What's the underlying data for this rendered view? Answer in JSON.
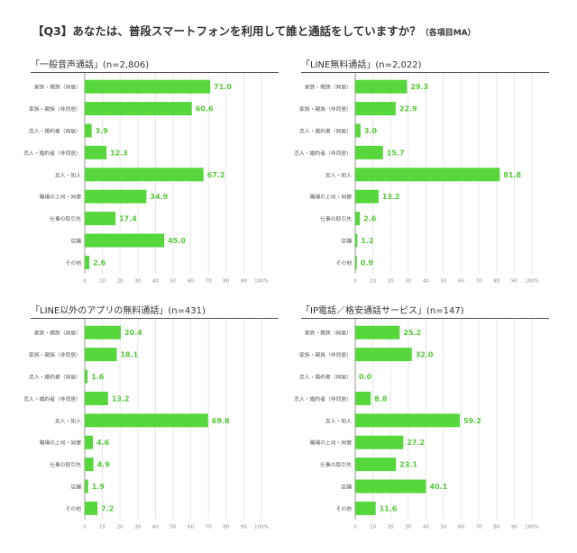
{
  "title": {
    "main": "【Q3】あなたは、普段スマートフォンを利用して誰と通話をしていますか？",
    "note": "（各項目MA）"
  },
  "colors": {
    "bar": "#56d73c",
    "value_text": "#56c93a",
    "grid": "#e6e6e6",
    "axis": "#999999"
  },
  "chart_data": [
    {
      "type": "bar",
      "orientation": "horizontal",
      "title": "「一般音声通話」",
      "n_label": "(n=2,806)",
      "categories": [
        "家族・親族（同居）",
        "家族・親族（非同居）",
        "恋人・婚約者（同居）",
        "恋人・婚約者（非同居）",
        "友人・知人",
        "職場の上司・同僚",
        "仕事の取引先",
        "店舗",
        "その他"
      ],
      "values": [
        71.0,
        60.6,
        3.9,
        12.3,
        67.2,
        34.9,
        17.4,
        45.0,
        2.6
      ],
      "xlim": [
        0,
        100
      ],
      "xticks": [
        "0",
        "10",
        "20",
        "30",
        "40",
        "50",
        "60",
        "70",
        "80",
        "90",
        "100%"
      ],
      "grid": true
    },
    {
      "type": "bar",
      "orientation": "horizontal",
      "title": "「LINE無料通話」",
      "n_label": "(n=2,022)",
      "categories": [
        "家族・親族（同居）",
        "家族・親族（非同居）",
        "恋人・婚約者（同居）",
        "恋人・婚約者（非同居）",
        "友人・知人",
        "職場の上司・同僚",
        "仕事の取引先",
        "店舗",
        "その他"
      ],
      "values": [
        29.3,
        22.9,
        3.0,
        15.7,
        81.8,
        13.2,
        2.6,
        1.2,
        0.9
      ],
      "xlim": [
        0,
        100
      ],
      "xticks": [
        "0",
        "10",
        "20",
        "30",
        "40",
        "50",
        "60",
        "70",
        "80",
        "90",
        "100%"
      ],
      "grid": true
    },
    {
      "type": "bar",
      "orientation": "horizontal",
      "title": "「LINE以外のアプリの無料通話」",
      "n_label": "(n=431)",
      "categories": [
        "家族・親族（同居）",
        "家族・親族（非同居）",
        "恋人・婚約者（同居）",
        "恋人・婚約者（非同居）",
        "友人・知人",
        "職場の上司・同僚",
        "仕事の取引先",
        "店舗",
        "その他"
      ],
      "values": [
        20.4,
        18.1,
        1.6,
        13.2,
        69.8,
        4.6,
        4.9,
        1.9,
        7.2
      ],
      "xlim": [
        0,
        100
      ],
      "xticks": [
        "0",
        "10",
        "20",
        "30",
        "40",
        "50",
        "60",
        "70",
        "80",
        "90",
        "100%"
      ],
      "grid": true
    },
    {
      "type": "bar",
      "orientation": "horizontal",
      "title": "「IP電話／格安通話サービス」",
      "n_label": "(n=147)",
      "categories": [
        "家族・親族（同居）",
        "家族・親族（非同居）",
        "恋人・婚約者（同居）",
        "恋人・婚約者（非同居）",
        "友人・知人",
        "職場の上司・同僚",
        "仕事の取引先",
        "店舗",
        "その他"
      ],
      "values": [
        25.2,
        32.0,
        0.0,
        8.8,
        59.2,
        27.2,
        23.1,
        40.1,
        11.6
      ],
      "xlim": [
        0,
        100
      ],
      "xticks": [
        "0",
        "10",
        "20",
        "30",
        "40",
        "50",
        "60",
        "70",
        "80",
        "90",
        "100%"
      ],
      "grid": true
    }
  ]
}
